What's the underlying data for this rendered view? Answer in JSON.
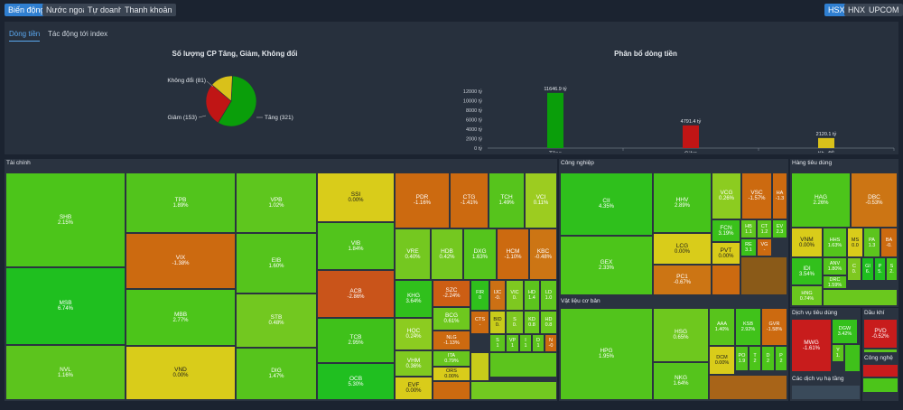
{
  "colors": {
    "up_strong": "#1fbf1f",
    "up": "#4cc51a",
    "up_light": "#8fcf22",
    "ref": "#d9cc1a",
    "down": "#cc6a10",
    "down_strong": "#c81c1c"
  },
  "top_tabs": [
    "Biến động",
    "Nước ngoài",
    "Tự doanh",
    "Thanh khoản"
  ],
  "exchanges": [
    "HSX",
    "HNX",
    "UPCOM"
  ],
  "sub_tabs": [
    "Dòng tiền",
    "Tác động tới index"
  ],
  "pie": {
    "title": "Số lượng CP Tăng, Giảm, Không đổi",
    "labels": {
      "tang": "Tăng (321)",
      "giam": "Giảm (153)",
      "khongdoi": "Không đổi (81)"
    }
  },
  "bar": {
    "title": "Phân bổ dòng tiền",
    "yticks": [
      "12000 tỷ",
      "10000 tỷ",
      "8000 tỷ",
      "6000 tỷ",
      "4000 tỷ",
      "2000 tỷ",
      "0 tỷ"
    ],
    "categories": [
      "Tăng",
      "Giảm",
      "Kh. đổi"
    ],
    "value_labels": [
      "11646.9 tỷ",
      "4791.4 tỷ",
      "2120.1 tỷ"
    ]
  },
  "chart_data": [
    {
      "type": "pie",
      "title": "Số lượng CP Tăng, Giảm, Không đổi",
      "categories": [
        "Tăng",
        "Giảm",
        "Không đổi"
      ],
      "values": [
        321,
        153,
        81
      ],
      "colors": [
        "#0a9e0a",
        "#c01515",
        "#d9c11a"
      ]
    },
    {
      "type": "bar",
      "title": "Phân bổ dòng tiền",
      "categories": [
        "Tăng",
        "Giảm",
        "Kh. đổi"
      ],
      "values": [
        11646.9,
        4791.4,
        2120.1
      ],
      "ylim": [
        0,
        12000
      ],
      "colors": [
        "#0a9e0a",
        "#c01515",
        "#d9c11a"
      ]
    }
  ],
  "sections": {
    "taichinh": "Tài chính",
    "congnghiep": "Công nghiệp",
    "hangtieudung": "Hàng tiêu dùng",
    "vatlieu": "Vật liệu cơ bản",
    "dichvu": "Dịch vụ tiêu dùng",
    "daukhi": "Dầu khí",
    "congnghe": "Công nghệ",
    "hatang": "Các dịch vụ hạ tầng"
  },
  "tiles": [
    {
      "s": "SHB",
      "p": "2.15%",
      "c": "#4cc51a",
      "x": 6,
      "y": 191,
      "w": 133,
      "h": 105
    },
    {
      "s": "MSB",
      "p": "6.74%",
      "c": "#1fbf1f",
      "x": 6,
      "y": 296,
      "w": 133,
      "h": 86
    },
    {
      "s": "NVL",
      "p": "1.16%",
      "c": "#5cc41d",
      "x": 6,
      "y": 382,
      "w": 133,
      "h": 61
    },
    {
      "s": "TPB",
      "p": "1.89%",
      "c": "#52c41c",
      "x": 139,
      "y": 191,
      "w": 122,
      "h": 67
    },
    {
      "s": "VIX",
      "p": "-1.38%",
      "c": "#cc6a10",
      "x": 139,
      "y": 258,
      "w": 122,
      "h": 62
    },
    {
      "s": "MBB",
      "p": "2.77%",
      "c": "#4cc51a",
      "x": 139,
      "y": 320,
      "w": 122,
      "h": 63
    },
    {
      "s": "VND",
      "p": "0.00%",
      "c": "#d9cc1a",
      "x": 139,
      "y": 383,
      "w": 122,
      "h": 60
    },
    {
      "s": "VPB",
      "p": "1.02%",
      "c": "#5ec61e",
      "x": 261,
      "y": 191,
      "w": 90,
      "h": 67
    },
    {
      "s": "EIB",
      "p": "1.60%",
      "c": "#55c41c",
      "x": 261,
      "y": 258,
      "w": 90,
      "h": 67
    },
    {
      "s": "STB",
      "p": "0.48%",
      "c": "#72c820",
      "x": 261,
      "y": 325,
      "w": 90,
      "h": 60
    },
    {
      "s": "DIG",
      "p": "1.47%",
      "c": "#56c41c",
      "x": 261,
      "y": 385,
      "w": 90,
      "h": 58
    },
    {
      "s": "SSI",
      "p": "0.00%",
      "c": "#d9cc1a",
      "x": 351,
      "y": 191,
      "w": 86,
      "h": 55
    },
    {
      "s": "VIB",
      "p": "1.84%",
      "c": "#52c41c",
      "x": 351,
      "y": 246,
      "w": 86,
      "h": 53
    },
    {
      "s": "ACB",
      "p": "-2.86%",
      "c": "#c9541a",
      "x": 351,
      "y": 299,
      "w": 86,
      "h": 53
    },
    {
      "s": "TCB",
      "p": "2.95%",
      "c": "#3fc11a",
      "x": 351,
      "y": 352,
      "w": 86,
      "h": 50
    },
    {
      "s": "OCB",
      "p": "5.30%",
      "c": "#20bf20",
      "x": 351,
      "y": 402,
      "w": 86,
      "h": 41
    },
    {
      "s": "PDR",
      "p": "-1.16%",
      "c": "#cc6a10",
      "x": 437,
      "y": 191,
      "w": 61,
      "h": 62
    },
    {
      "s": "CTG",
      "p": "-1.41%",
      "c": "#cc6a10",
      "x": 498,
      "y": 191,
      "w": 43,
      "h": 62
    },
    {
      "s": "TCH",
      "p": "1.49%",
      "c": "#56c41c",
      "x": 541,
      "y": 191,
      "w": 40,
      "h": 62
    },
    {
      "s": "VCI",
      "p": "0.11%",
      "c": "#9ccc20",
      "x": 581,
      "y": 191,
      "w": 36,
      "h": 62
    },
    {
      "s": "VRE",
      "p": "0.40%",
      "c": "#74c820",
      "x": 437,
      "y": 253,
      "w": 40,
      "h": 57
    },
    {
      "s": "HDB",
      "p": "0.42%",
      "c": "#74c820",
      "x": 477,
      "y": 253,
      "w": 36,
      "h": 57
    },
    {
      "s": "DXG",
      "p": "1.63%",
      "c": "#55c41c",
      "x": 513,
      "y": 253,
      "w": 37,
      "h": 57
    },
    {
      "s": "HCM",
      "p": "-1.10%",
      "c": "#cc6a10",
      "x": 550,
      "y": 253,
      "w": 36,
      "h": 57
    },
    {
      "s": "KBC",
      "p": "-0.48%",
      "c": "#cc7514",
      "x": 586,
      "y": 253,
      "w": 31,
      "h": 57
    },
    {
      "s": "KHG",
      "p": "3.64%",
      "c": "#30c01c",
      "x": 437,
      "y": 310,
      "w": 42,
      "h": 42
    },
    {
      "s": "HQC",
      "p": "0.24%",
      "c": "#8ccc20",
      "x": 437,
      "y": 352,
      "w": 42,
      "h": 36
    },
    {
      "s": "VHM",
      "p": "0.36%",
      "c": "#80ca20",
      "x": 437,
      "y": 388,
      "w": 42,
      "h": 29
    },
    {
      "s": "EVF",
      "p": "0.00%",
      "c": "#d9cc1a",
      "x": 437,
      "y": 417,
      "w": 42,
      "h": 26
    },
    {
      "s": "SZC",
      "p": "-2.24%",
      "c": "#cc5e14",
      "x": 479,
      "y": 310,
      "w": 42,
      "h": 30
    },
    {
      "s": "BCG",
      "p": "0.61%",
      "c": "#6ec81e",
      "x": 479,
      "y": 340,
      "w": 42,
      "h": 26
    },
    {
      "s": "NLG",
      "p": "-1.13%",
      "c": "#cc6a10",
      "x": 479,
      "y": 366,
      "w": 42,
      "h": 22
    },
    {
      "s": "ITA",
      "p": "0.79%",
      "c": "#68c61e",
      "x": 479,
      "y": 388,
      "w": 42,
      "h": 18
    },
    {
      "s": "ORS",
      "p": "0.00%",
      "c": "#d9cc1a",
      "x": 479,
      "y": 406,
      "w": 42,
      "h": 16
    },
    {
      "s": "FIR",
      "p": "0",
      "c": "#2fc01c",
      "x": 521,
      "y": 310,
      "w": 21,
      "h": 34
    },
    {
      "s": "IJC",
      "p": "-0.",
      "c": "#cc7014",
      "x": 542,
      "y": 310,
      "w": 18,
      "h": 34
    },
    {
      "s": "VIC",
      "p": "0.",
      "c": "#7ec820",
      "x": 560,
      "y": 310,
      "w": 20,
      "h": 34
    },
    {
      "s": "HD",
      "p": "1.4",
      "c": "#5cc41d",
      "x": 580,
      "y": 310,
      "w": 18,
      "h": 34
    },
    {
      "s": "LD",
      "p": "1.0",
      "c": "#60c61e",
      "x": 598,
      "y": 310,
      "w": 19,
      "h": 34
    },
    {
      "s": "CTS",
      "p": "-",
      "c": "#cc6a10",
      "x": 521,
      "y": 344,
      "w": 21,
      "h": 26
    },
    {
      "s": "BID",
      "p": "0.",
      "c": "#c8cc1a",
      "x": 542,
      "y": 344,
      "w": 18,
      "h": 26
    },
    {
      "s": "S",
      "p": "0.",
      "c": "#7ec820",
      "x": 560,
      "y": 344,
      "w": 20,
      "h": 26
    },
    {
      "s": "KD",
      "p": "0.8",
      "c": "#6ac81e",
      "x": 580,
      "y": 344,
      "w": 18,
      "h": 26
    },
    {
      "s": "HD",
      "p": "0.8",
      "c": "#6ac81e",
      "x": 598,
      "y": 344,
      "w": 19,
      "h": 26
    },
    {
      "s": "S",
      "p": "1",
      "c": "#5cc41d",
      "x": 542,
      "y": 370,
      "w": 18,
      "h": 20
    },
    {
      "s": "VP",
      "p": "1",
      "c": "#5cc41d",
      "x": 560,
      "y": 370,
      "w": 15,
      "h": 20
    },
    {
      "s": "I",
      "p": "1",
      "c": "#5cc41d",
      "x": 575,
      "y": 370,
      "w": 14,
      "h": 20
    },
    {
      "s": "D",
      "p": "1",
      "c": "#5cc41d",
      "x": 589,
      "y": 370,
      "w": 14,
      "h": 20
    },
    {
      "s": "N",
      "p": "-0",
      "c": "#cc6a10",
      "x": 603,
      "y": 370,
      "w": 14,
      "h": 20
    },
    {
      "s": "CII",
      "p": "4.35%",
      "c": "#2fc01c",
      "x": 620,
      "y": 191,
      "w": 103,
      "h": 70
    },
    {
      "s": "GEX",
      "p": "2.33%",
      "c": "#4cc51a",
      "x": 620,
      "y": 261,
      "w": 103,
      "h": 66
    },
    {
      "s": "HHV",
      "p": "2.89%",
      "c": "#45c31a",
      "x": 723,
      "y": 191,
      "w": 65,
      "h": 67
    },
    {
      "s": "LCG",
      "p": "0.00%",
      "c": "#d9cc1a",
      "x": 723,
      "y": 258,
      "w": 65,
      "h": 35
    },
    {
      "s": "PC1",
      "p": "-0.67%",
      "c": "#cc7514",
      "x": 723,
      "y": 293,
      "w": 65,
      "h": 34
    },
    {
      "s": "VCG",
      "p": "0.26%",
      "c": "#8ccc20",
      "x": 788,
      "y": 191,
      "w": 33,
      "h": 52
    },
    {
      "s": "VSC",
      "p": "-1.57%",
      "c": "#cc6a10",
      "x": 821,
      "y": 191,
      "w": 34,
      "h": 52
    },
    {
      "s": "HA",
      "p": "-1.3",
      "c": "#cc6a10",
      "x": 855,
      "y": 191,
      "w": 17,
      "h": 52
    },
    {
      "s": "FCN",
      "p": "3.19%",
      "c": "#3ac11a",
      "x": 788,
      "y": 243,
      "w": 32,
      "h": 25
    },
    {
      "s": "PVT",
      "p": "0.00%",
      "c": "#d9cc1a",
      "x": 788,
      "y": 268,
      "w": 32,
      "h": 25
    },
    {
      "s": "HB",
      "p": "1.1",
      "c": "#5ec61e",
      "x": 820,
      "y": 243,
      "w": 18,
      "h": 21
    },
    {
      "s": "CT",
      "p": "1.2",
      "c": "#5cc41d",
      "x": 838,
      "y": 243,
      "w": 17,
      "h": 21
    },
    {
      "s": "EV",
      "p": "2.3",
      "c": "#4cc51a",
      "x": 855,
      "y": 243,
      "w": 17,
      "h": 21
    },
    {
      "s": "RE",
      "p": "3.1",
      "c": "#3ac11a",
      "x": 820,
      "y": 264,
      "w": 18,
      "h": 20
    },
    {
      "s": "VG",
      "p": "-",
      "c": "#cc6a10",
      "x": 838,
      "y": 264,
      "w": 17,
      "h": 20
    },
    {
      "s": "HPG",
      "p": "1.95%",
      "c": "#52c41c",
      "x": 620,
      "y": 341,
      "w": 103,
      "h": 102
    },
    {
      "s": "HSG",
      "p": "0.65%",
      "c": "#6ec81e",
      "x": 723,
      "y": 341,
      "w": 62,
      "h": 60
    },
    {
      "s": "NKG",
      "p": "1.64%",
      "c": "#55c41c",
      "x": 723,
      "y": 401,
      "w": 62,
      "h": 42
    },
    {
      "s": "AAA",
      "p": "1.40%",
      "c": "#58c41c",
      "x": 785,
      "y": 341,
      "w": 29,
      "h": 42
    },
    {
      "s": "KSB",
      "p": "2.92%",
      "c": "#40c21a",
      "x": 814,
      "y": 341,
      "w": 29,
      "h": 42
    },
    {
      "s": "GVR",
      "p": "-1.58%",
      "c": "#cc6a10",
      "x": 843,
      "y": 341,
      "w": 29,
      "h": 42
    },
    {
      "s": "DCM",
      "p": "0.00%",
      "c": "#d9cc1a",
      "x": 785,
      "y": 383,
      "w": 29,
      "h": 32
    },
    {
      "s": "PO",
      "p": "1.9",
      "c": "#52c41c",
      "x": 814,
      "y": 383,
      "w": 15,
      "h": 28
    },
    {
      "s": "T",
      "p": "2",
      "c": "#4cc51a",
      "x": 829,
      "y": 383,
      "w": 14,
      "h": 28
    },
    {
      "s": "D",
      "p": "2",
      "c": "#4cc51a",
      "x": 843,
      "y": 383,
      "w": 15,
      "h": 28
    },
    {
      "s": "P",
      "p": "2",
      "c": "#4cc51a",
      "x": 858,
      "y": 383,
      "w": 14,
      "h": 28
    },
    {
      "s": "HAG",
      "p": "2.26%",
      "c": "#4cc51a",
      "x": 876,
      "y": 191,
      "w": 66,
      "h": 61
    },
    {
      "s": "DBC",
      "p": "-0.53%",
      "c": "#cc7514",
      "x": 942,
      "y": 191,
      "w": 52,
      "h": 61
    },
    {
      "s": "VNM",
      "p": "0.00%",
      "c": "#d9cc1a",
      "x": 876,
      "y": 252,
      "w": 35,
      "h": 33
    },
    {
      "s": "HHS",
      "p": "1.63%",
      "c": "#55c41c",
      "x": 911,
      "y": 252,
      "w": 27,
      "h": 33
    },
    {
      "s": "MS",
      "p": "0.0",
      "c": "#d9cc1a",
      "x": 938,
      "y": 252,
      "w": 18,
      "h": 33
    },
    {
      "s": "PA",
      "p": "1.3",
      "c": "#5cc41d",
      "x": 956,
      "y": 252,
      "w": 19,
      "h": 33
    },
    {
      "s": "BA",
      "p": "-0.",
      "c": "#cc6a10",
      "x": 975,
      "y": 252,
      "w": 19,
      "h": 33
    },
    {
      "s": "IDI",
      "p": "3.54%",
      "c": "#32c01c",
      "x": 876,
      "y": 285,
      "w": 35,
      "h": 31
    },
    {
      "s": "ANV",
      "p": "1.80%",
      "c": "#53c41c",
      "x": 911,
      "y": 285,
      "w": 27,
      "h": 20
    },
    {
      "s": "DRC",
      "p": "1.59%",
      "c": "#55c41c",
      "x": 911,
      "y": 305,
      "w": 27,
      "h": 15
    },
    {
      "s": "C",
      "p": "0.",
      "c": "#7ec820",
      "x": 938,
      "y": 285,
      "w": 16,
      "h": 26
    },
    {
      "s": "GI",
      "p": "6.",
      "c": "#1fbf1f",
      "x": 954,
      "y": 285,
      "w": 14,
      "h": 26
    },
    {
      "s": "P",
      "p": "5.",
      "c": "#20bf20",
      "x": 968,
      "y": 285,
      "w": 13,
      "h": 26
    },
    {
      "s": "S",
      "p": "2.",
      "c": "#4cc51a",
      "x": 981,
      "y": 285,
      "w": 13,
      "h": 26
    },
    {
      "s": "HNG",
      "p": "0.74%",
      "c": "#6ac81e",
      "x": 876,
      "y": 316,
      "w": 35,
      "h": 23
    },
    {
      "s": "MWG",
      "p": "-1.61%",
      "c": "#c81c1c",
      "x": 876,
      "y": 353,
      "w": 45,
      "h": 59
    },
    {
      "s": "DGW",
      "p": "3.42%",
      "c": "#34c01c",
      "x": 921,
      "y": 353,
      "w": 29,
      "h": 28
    },
    {
      "s": "Y",
      "p": "1.",
      "c": "#5cc41d",
      "x": 921,
      "y": 381,
      "w": 14,
      "h": 20
    },
    {
      "s": "PVD",
      "p": "-0.52%",
      "c": "#c81c1c",
      "x": 956,
      "y": 353,
      "w": 38,
      "h": 33
    }
  ]
}
